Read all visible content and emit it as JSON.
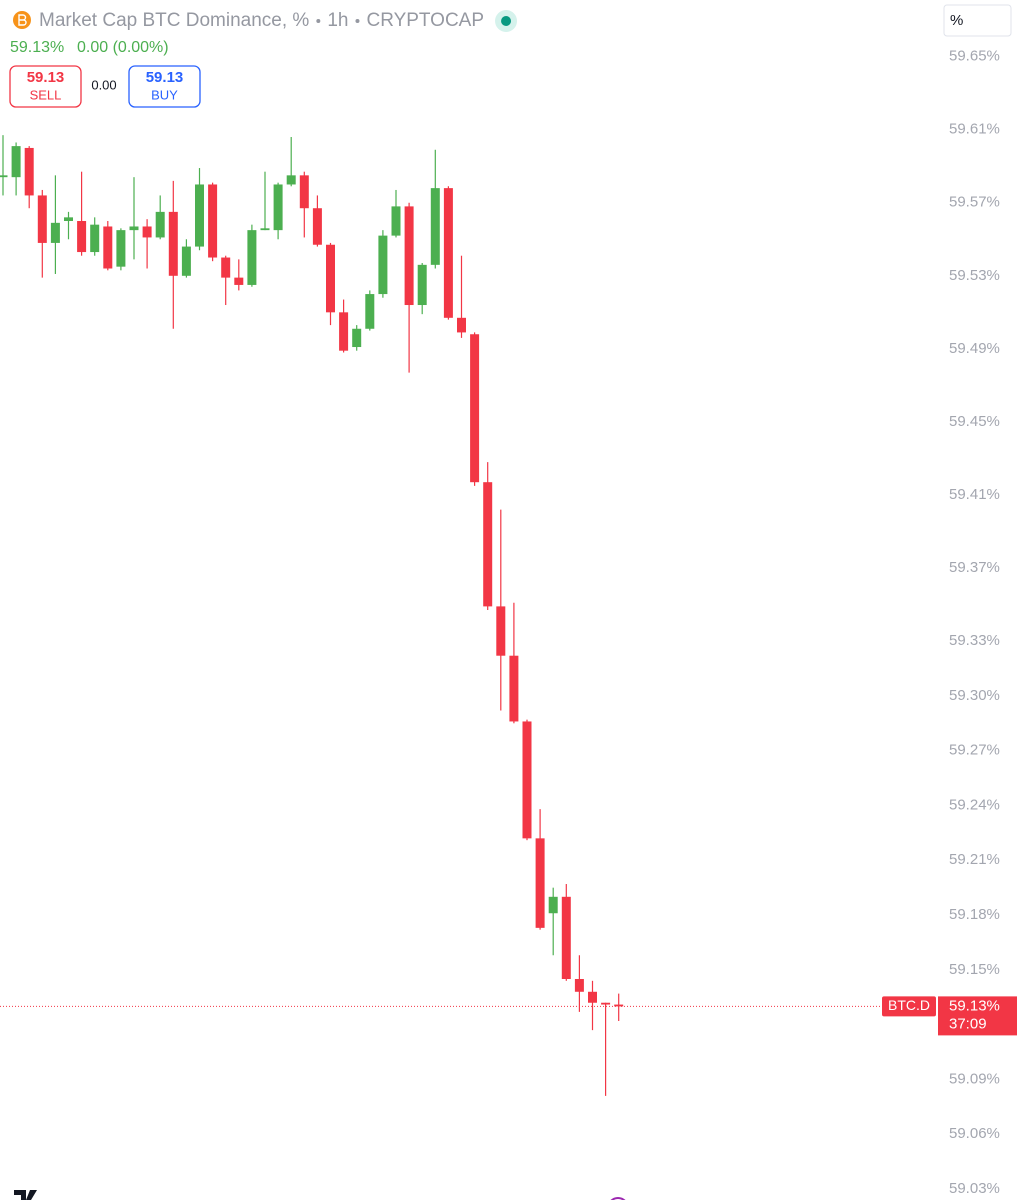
{
  "chart_data": {
    "type": "candlestick",
    "title": "Market Cap BTC Dominance, %",
    "interval": "1h",
    "source": "CRYPTOCAP",
    "legend_last": "59.13%",
    "legend_change": "0.00 (0.00%)",
    "sell": {
      "value": 59.13,
      "label": "SELL"
    },
    "spread": "0.00",
    "buy": {
      "value": 59.13,
      "label": "BUY"
    },
    "unit": "%",
    "symbol": "BTC.D",
    "last_price": {
      "value": 59.13,
      "label": "59.13%"
    },
    "countdown": "37:09",
    "up_color": "#4caf50",
    "down_color": "#f23645",
    "categories": [
      null,
      null,
      null,
      null,
      null,
      null,
      null,
      null,
      null,
      null,
      null,
      null,
      null,
      null,
      null,
      null,
      null,
      null,
      null,
      null,
      null,
      null,
      null,
      null,
      null,
      null,
      null,
      null,
      null,
      null,
      null,
      null,
      null,
      null,
      null,
      null,
      null,
      null,
      null,
      null,
      null,
      null,
      null,
      null,
      null,
      null,
      null,
      null
    ],
    "open": [
      59.584,
      59.584,
      59.6,
      59.574,
      59.548,
      59.56,
      59.56,
      59.543,
      59.557,
      59.535,
      59.555,
      59.557,
      59.551,
      59.565,
      59.53,
      59.546,
      59.58,
      59.54,
      59.529,
      59.525,
      59.555,
      59.555,
      59.58,
      59.585,
      59.567,
      59.547,
      59.51,
      59.491,
      59.501,
      59.52,
      59.552,
      59.568,
      59.514,
      59.536,
      59.578,
      59.507,
      59.498,
      59.417,
      59.349,
      59.322,
      59.286,
      59.222,
      59.181,
      59.19,
      59.145,
      59.138,
      59.132,
      59.131
    ],
    "high": [
      59.607,
      59.603,
      59.601,
      59.577,
      59.585,
      59.565,
      59.587,
      59.562,
      59.56,
      59.556,
      59.584,
      59.561,
      59.574,
      59.582,
      59.55,
      59.589,
      59.581,
      59.541,
      59.539,
      59.558,
      59.587,
      59.581,
      59.606,
      59.587,
      59.574,
      59.548,
      59.517,
      59.503,
      59.522,
      59.555,
      59.577,
      59.57,
      59.537,
      59.599,
      59.579,
      59.541,
      59.499,
      59.428,
      59.402,
      59.351,
      59.287,
      59.238,
      59.195,
      59.197,
      59.158,
      59.144,
      59.132,
      59.137
    ],
    "low": [
      59.574,
      59.574,
      59.567,
      59.529,
      59.531,
      59.55,
      59.541,
      59.541,
      59.533,
      59.533,
      59.539,
      59.534,
      59.55,
      59.501,
      59.529,
      59.544,
      59.538,
      59.514,
      59.522,
      59.524,
      59.555,
      59.55,
      59.579,
      59.551,
      59.546,
      59.503,
      59.488,
      59.489,
      59.5,
      59.518,
      59.551,
      59.477,
      59.509,
      59.534,
      59.506,
      59.496,
      59.415,
      59.347,
      59.292,
      59.285,
      59.221,
      59.172,
      59.158,
      59.144,
      59.127,
      59.117,
      59.081,
      59.122
    ],
    "close": [
      59.585,
      59.601,
      59.574,
      59.548,
      59.559,
      59.562,
      59.543,
      59.558,
      59.534,
      59.555,
      59.557,
      59.551,
      59.565,
      59.53,
      59.546,
      59.58,
      59.54,
      59.529,
      59.525,
      59.555,
      59.556,
      59.58,
      59.585,
      59.567,
      59.547,
      59.51,
      59.489,
      59.501,
      59.52,
      59.552,
      59.568,
      59.514,
      59.536,
      59.578,
      59.507,
      59.499,
      59.417,
      59.349,
      59.322,
      59.286,
      59.222,
      59.173,
      59.19,
      59.145,
      59.138,
      59.132,
      59.131,
      59.13
    ],
    "ylim": [
      59.024,
      59.681
    ],
    "yticks": [
      {
        "value": 59.65,
        "label": "59.65%"
      },
      {
        "value": 59.61,
        "label": "59.61%"
      },
      {
        "value": 59.57,
        "label": "59.57%"
      },
      {
        "value": 59.53,
        "label": "59.53%"
      },
      {
        "value": 59.49,
        "label": "59.49%"
      },
      {
        "value": 59.45,
        "label": "59.45%"
      },
      {
        "value": 59.41,
        "label": "59.41%"
      },
      {
        "value": 59.37,
        "label": "59.37%"
      },
      {
        "value": 59.33,
        "label": "59.33%"
      },
      {
        "value": 59.3,
        "label": "59.30%"
      },
      {
        "value": 59.27,
        "label": "59.27%"
      },
      {
        "value": 59.24,
        "label": "59.24%"
      },
      {
        "value": 59.21,
        "label": "59.21%"
      },
      {
        "value": 59.18,
        "label": "59.18%"
      },
      {
        "value": 59.15,
        "label": "59.15%"
      },
      {
        "value": 59.09,
        "label": "59.09%"
      },
      {
        "value": 59.06,
        "label": "59.06%"
      },
      {
        "value": 59.03,
        "label": "59.03%"
      }
    ],
    "grid": false
  }
}
